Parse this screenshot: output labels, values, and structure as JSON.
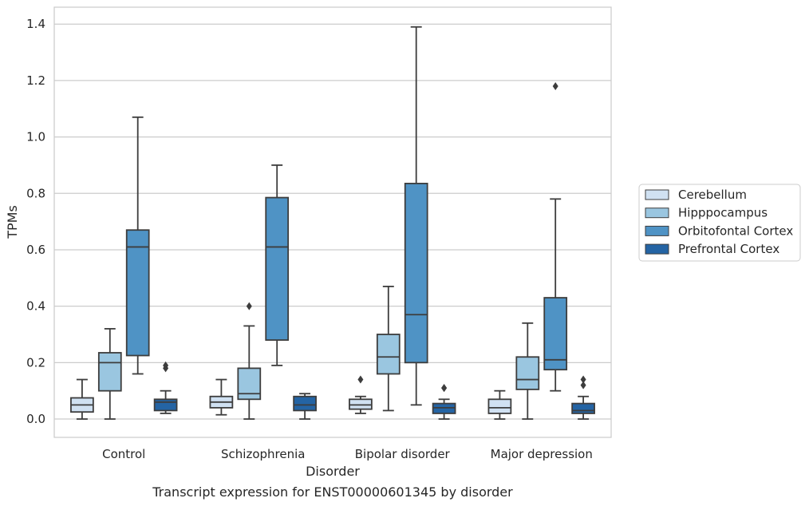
{
  "caption": "Transcript expression for ENST00000601345 by disorder",
  "chart_data": {
    "type": "box",
    "title": "",
    "xlabel": "Disorder",
    "ylabel": "TPMs",
    "ylim": [
      -0.065,
      1.46
    ],
    "yticks": [
      "0.0",
      "0.2",
      "0.4",
      "0.6",
      "0.8",
      "1.0",
      "1.2",
      "1.4"
    ],
    "grid": "horizontal",
    "legend_position": "right",
    "categories": [
      "Control",
      "Schizophrenia",
      "Bipolar disorder",
      "Major depression"
    ],
    "series": [
      {
        "name": "Cerebellum",
        "color": "#d0e1f2",
        "boxes": [
          {
            "whislo": 0.0,
            "q1": 0.025,
            "med": 0.05,
            "q3": 0.075,
            "whishi": 0.14,
            "fliers": []
          },
          {
            "whislo": 0.015,
            "q1": 0.04,
            "med": 0.06,
            "q3": 0.08,
            "whishi": 0.14,
            "fliers": []
          },
          {
            "whislo": 0.02,
            "q1": 0.035,
            "med": 0.05,
            "q3": 0.07,
            "whishi": 0.08,
            "fliers": [
              0.14
            ]
          },
          {
            "whislo": 0.0,
            "q1": 0.02,
            "med": 0.04,
            "q3": 0.07,
            "whishi": 0.1,
            "fliers": []
          }
        ]
      },
      {
        "name": "Hipppocampus",
        "color": "#9ac6e0",
        "boxes": [
          {
            "whislo": 0.0,
            "q1": 0.1,
            "med": 0.2,
            "q3": 0.235,
            "whishi": 0.32,
            "fliers": []
          },
          {
            "whislo": 0.0,
            "q1": 0.07,
            "med": 0.09,
            "q3": 0.18,
            "whishi": 0.33,
            "fliers": [
              0.4
            ]
          },
          {
            "whislo": 0.03,
            "q1": 0.16,
            "med": 0.22,
            "q3": 0.3,
            "whishi": 0.47,
            "fliers": []
          },
          {
            "whislo": 0.0,
            "q1": 0.105,
            "med": 0.14,
            "q3": 0.22,
            "whishi": 0.34,
            "fliers": []
          }
        ]
      },
      {
        "name": "Orbitofontal Cortex",
        "color": "#4f93c5",
        "boxes": [
          {
            "whislo": 0.16,
            "q1": 0.225,
            "med": 0.61,
            "q3": 0.67,
            "whishi": 1.07,
            "fliers": []
          },
          {
            "whislo": 0.19,
            "q1": 0.28,
            "med": 0.61,
            "q3": 0.785,
            "whishi": 0.9,
            "fliers": []
          },
          {
            "whislo": 0.05,
            "q1": 0.2,
            "med": 0.37,
            "q3": 0.835,
            "whishi": 1.39,
            "fliers": []
          },
          {
            "whislo": 0.1,
            "q1": 0.175,
            "med": 0.21,
            "q3": 0.43,
            "whishi": 0.78,
            "fliers": [
              1.18
            ]
          }
        ]
      },
      {
        "name": "Prefrontal Cortex",
        "color": "#2464a4",
        "boxes": [
          {
            "whislo": 0.02,
            "q1": 0.03,
            "med": 0.06,
            "q3": 0.07,
            "whishi": 0.1,
            "fliers": [
              0.18,
              0.19
            ]
          },
          {
            "whislo": 0.0,
            "q1": 0.03,
            "med": 0.05,
            "q3": 0.08,
            "whishi": 0.09,
            "fliers": []
          },
          {
            "whislo": 0.0,
            "q1": 0.02,
            "med": 0.04,
            "q3": 0.055,
            "whishi": 0.07,
            "fliers": [
              0.11,
              0.11
            ]
          },
          {
            "whislo": 0.0,
            "q1": 0.02,
            "med": 0.03,
            "q3": 0.055,
            "whishi": 0.08,
            "fliers": [
              0.12,
              0.14
            ]
          }
        ]
      }
    ]
  }
}
